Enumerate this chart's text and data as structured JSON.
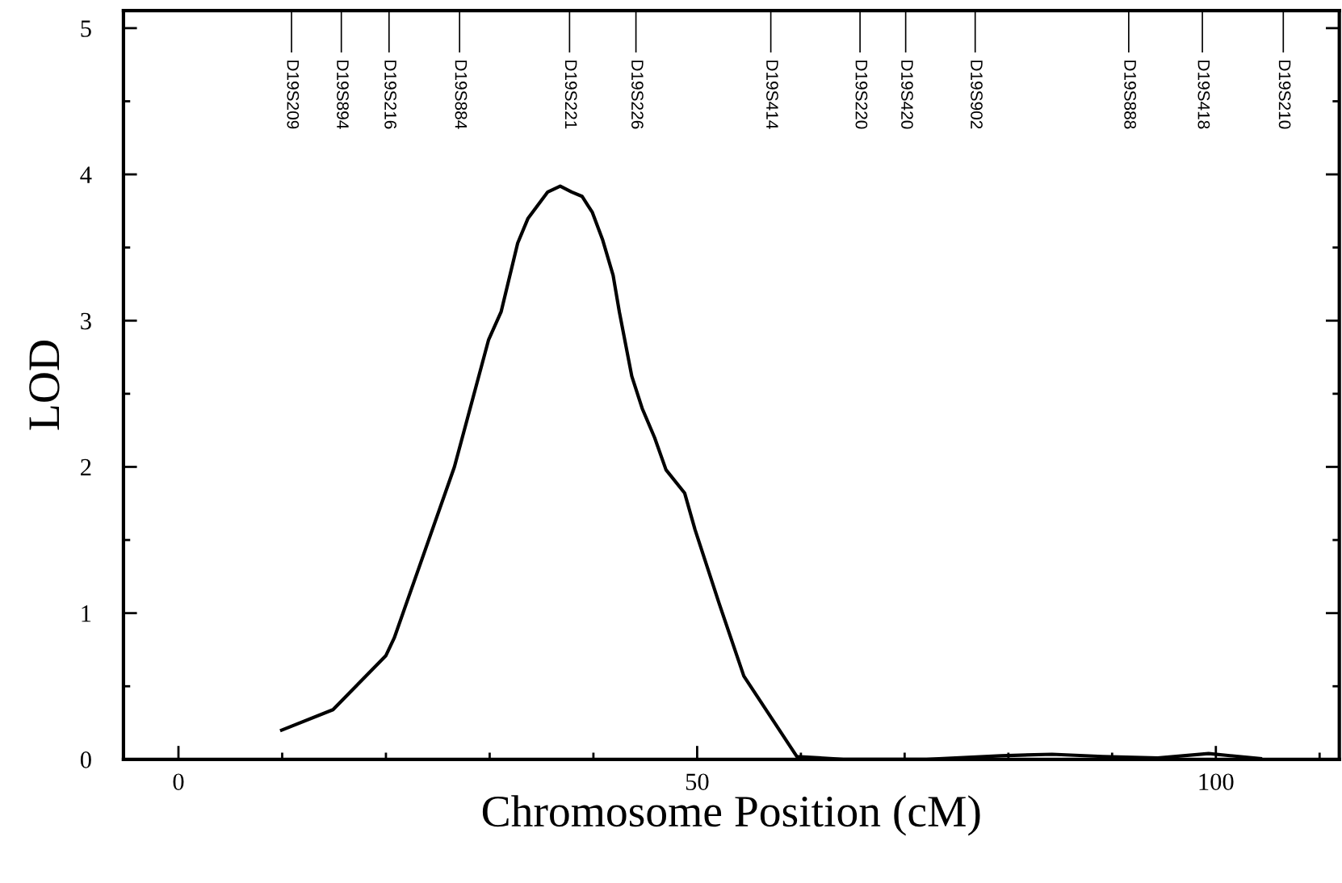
{
  "chart_data": {
    "type": "line",
    "xlabel": "Chromosome Position (cM)",
    "ylabel": "LOD",
    "xlim": [
      -5.3,
      111.9
    ],
    "ylim": [
      0,
      5.12
    ],
    "xticks": [
      0,
      50,
      100
    ],
    "yticks": [
      0,
      1,
      2,
      3,
      4,
      5
    ],
    "ref_lines": [
      {
        "axis": "x",
        "value": 10.9,
        "label": "D19S209"
      },
      {
        "axis": "x",
        "value": 15.7,
        "label": "D19S894"
      },
      {
        "axis": "x",
        "value": 20.3,
        "label": "D19S216"
      },
      {
        "axis": "x",
        "value": 27.1,
        "label": "D19S884"
      },
      {
        "axis": "x",
        "value": 37.7,
        "label": "D19S221"
      },
      {
        "axis": "x",
        "value": 44.1,
        "label": "D19S226"
      },
      {
        "axis": "x",
        "value": 57.1,
        "label": "D19S414"
      },
      {
        "axis": "x",
        "value": 65.7,
        "label": "D19S220"
      },
      {
        "axis": "x",
        "value": 70.1,
        "label": "D19S420"
      },
      {
        "axis": "x",
        "value": 76.8,
        "label": "D19S902"
      },
      {
        "axis": "x",
        "value": 91.6,
        "label": "D19S888"
      },
      {
        "axis": "x",
        "value": 98.7,
        "label": "D19S418"
      },
      {
        "axis": "x",
        "value": 106.5,
        "label": "D19S210"
      }
    ],
    "grid": false,
    "legend": false,
    "marker": "none",
    "line_style": "solid",
    "series": [
      {
        "color": "#000000",
        "x": [
          9.95,
          14.9,
          20.0,
          20.8,
          26.6,
          29.9,
          31.1,
          32.7,
          33.7,
          35.6,
          36.8,
          37.9,
          38.9,
          39.9,
          40.9,
          41.9,
          42.5,
          43.7,
          44.7,
          45.9,
          47.0,
          48.8,
          49.8,
          52.1,
          54.5,
          59.6,
          64.1,
          72.1,
          79.3,
          84.2,
          89.1,
          94.4,
          99.3,
          104.3
        ],
        "values": [
          0.2,
          0.34,
          0.71,
          0.83,
          2.0,
          2.87,
          3.06,
          3.53,
          3.7,
          3.88,
          3.92,
          3.88,
          3.85,
          3.74,
          3.55,
          3.31,
          3.06,
          2.62,
          2.4,
          2.2,
          1.98,
          1.82,
          1.57,
          1.07,
          0.57,
          0.02,
          0.0,
          0.0,
          0.025,
          0.035,
          0.02,
          0.01,
          0.04,
          0.005
        ]
      }
    ]
  }
}
